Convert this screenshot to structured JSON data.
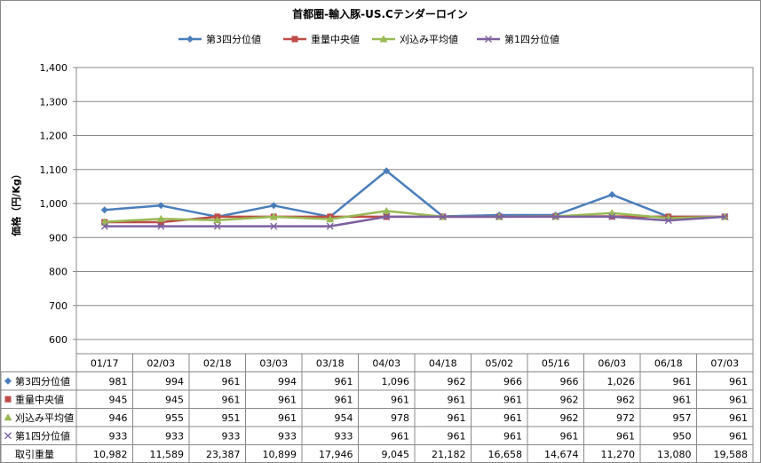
{
  "chart_data": {
    "type": "line",
    "title": "首都圏-輸入豚-US.Cテンダーロイン",
    "ylabel": "価格（円/Kg）",
    "ylim": [
      600,
      1400
    ],
    "yticks": [
      "600",
      "700",
      "800",
      "900",
      "1,000",
      "1,100",
      "1,200",
      "1,300",
      "1,400"
    ],
    "ytick_values": [
      600,
      700,
      800,
      900,
      1000,
      1100,
      1200,
      1300,
      1400
    ],
    "grid": true,
    "legend_position": "top",
    "categories": [
      "01/17",
      "02/03",
      "02/18",
      "03/03",
      "03/18",
      "04/03",
      "04/18",
      "05/02",
      "05/16",
      "06/03",
      "06/18",
      "07/03"
    ],
    "series": [
      {
        "name": "第3四分位値",
        "color": "#4a7ebb",
        "marker": "diamond",
        "values": [
          981,
          994,
          961,
          994,
          961,
          1096,
          962,
          966,
          966,
          1026,
          961,
          961
        ],
        "labels": [
          "981",
          "994",
          "961",
          "994",
          "961",
          "1,096",
          "962",
          "966",
          "966",
          "1,026",
          "961",
          "961"
        ]
      },
      {
        "name": "重量中央値",
        "color": "#be4b48",
        "marker": "square",
        "values": [
          945,
          945,
          961,
          961,
          961,
          961,
          961,
          961,
          962,
          962,
          961,
          961
        ],
        "labels": [
          "945",
          "945",
          "961",
          "961",
          "961",
          "961",
          "961",
          "961",
          "962",
          "962",
          "961",
          "961"
        ]
      },
      {
        "name": "刈込み平均値",
        "color": "#98b954",
        "marker": "triangle",
        "values": [
          946,
          955,
          951,
          961,
          954,
          978,
          961,
          961,
          962,
          972,
          957,
          961
        ],
        "labels": [
          "946",
          "955",
          "951",
          "961",
          "954",
          "978",
          "961",
          "961",
          "962",
          "972",
          "957",
          "961"
        ]
      },
      {
        "name": "第1四分位値",
        "color": "#7d60a0",
        "marker": "x",
        "values": [
          933,
          933,
          933,
          933,
          933,
          961,
          961,
          961,
          961,
          961,
          950,
          961
        ],
        "labels": [
          "933",
          "933",
          "933",
          "933",
          "933",
          "961",
          "961",
          "961",
          "961",
          "961",
          "950",
          "961"
        ]
      }
    ],
    "table_extra_rows": [
      {
        "name": "取引重量",
        "labels": [
          "10,982",
          "11,589",
          "23,387",
          "10,899",
          "17,946",
          "9,045",
          "21,182",
          "16,658",
          "14,674",
          "11,270",
          "13,080",
          "19,588"
        ]
      }
    ]
  }
}
